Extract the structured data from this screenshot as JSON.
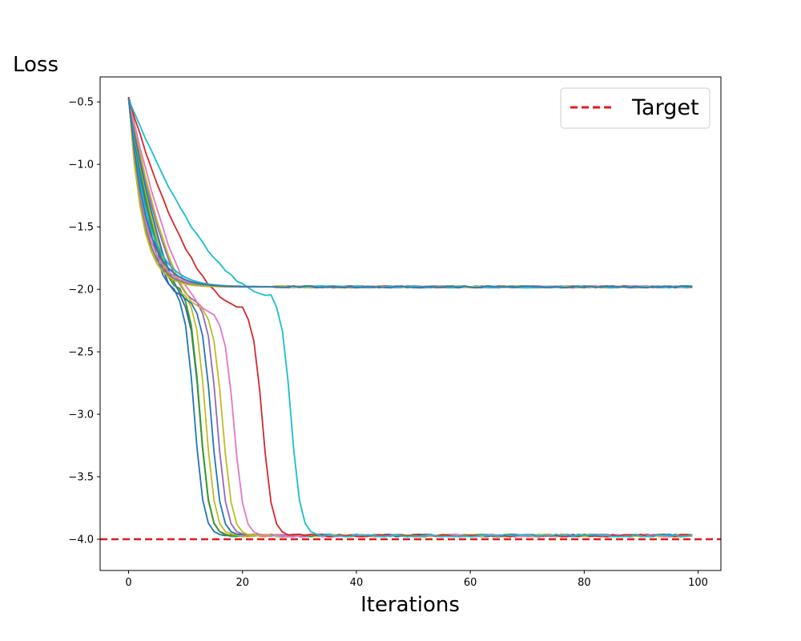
{
  "chart_data": {
    "type": "line",
    "xlabel": "Iterations",
    "ylabel": "Loss",
    "xlim": [
      -5,
      104
    ],
    "ylim": [
      -4.25,
      -0.3
    ],
    "xticks": [
      0,
      20,
      40,
      60,
      80,
      100
    ],
    "yticks": [
      -0.5,
      -1.0,
      -1.5,
      -2.0,
      -2.5,
      -3.0,
      -3.5,
      -4.0
    ],
    "ytick_labels": [
      "−0.5",
      "−1.0",
      "−1.5",
      "−2.0",
      "−2.5",
      "−3.0",
      "−3.5",
      "−4.0"
    ],
    "xtick_labels": [
      "0",
      "20",
      "40",
      "60",
      "80",
      "100"
    ],
    "iterations": 100,
    "start_loss": -0.47,
    "legend_position": "top-right",
    "grid": false,
    "target": {
      "label": "Target",
      "value": -4.0,
      "color": "#e41a1c",
      "style": "dashed"
    },
    "plateau_levels": [
      -1.98,
      -3.97
    ],
    "curves": [
      {
        "color": "#1f77b4",
        "plateau": -3.97,
        "drop_iteration": 10,
        "shoulder": -2.0
      },
      {
        "color": "#3b5fb0",
        "plateau": -3.97,
        "drop_iteration": 11,
        "shoulder": -2.05
      },
      {
        "color": "#ff7f0e",
        "plateau": -3.97,
        "drop_iteration": 11,
        "shoulder": -2.0
      },
      {
        "color": "#2ca02c",
        "plateau": -3.97,
        "drop_iteration": 11,
        "shoulder": -2.0
      },
      {
        "color": "#bcbd22",
        "plateau": -3.97,
        "drop_iteration": 12,
        "shoulder": -2.05
      },
      {
        "color": "#1f77b4",
        "plateau": -3.97,
        "drop_iteration": 13,
        "shoulder": -2.1
      },
      {
        "color": "#9467bd",
        "plateau": -3.97,
        "drop_iteration": 14,
        "shoulder": -2.1
      },
      {
        "color": "#bcbd22",
        "plateau": -3.97,
        "drop_iteration": 15,
        "shoulder": -2.15
      },
      {
        "color": "#e377c2",
        "plateau": -3.97,
        "drop_iteration": 17,
        "shoulder": -2.2
      },
      {
        "color": "#d62728",
        "plateau": -3.97,
        "drop_iteration": 22,
        "shoulder": -2.15
      },
      {
        "color": "#17becf",
        "plateau": -3.97,
        "drop_iteration": 27,
        "shoulder": -2.05
      },
      {
        "color": "#1f77b4",
        "plateau": -1.98,
        "drop_iteration": null,
        "shoulder": null
      },
      {
        "color": "#ff7f0e",
        "plateau": -1.98,
        "drop_iteration": null,
        "shoulder": null
      },
      {
        "color": "#2ca02c",
        "plateau": -1.98,
        "drop_iteration": null,
        "shoulder": null
      },
      {
        "color": "#d62728",
        "plateau": -1.98,
        "drop_iteration": null,
        "shoulder": null
      },
      {
        "color": "#9467bd",
        "plateau": -1.98,
        "drop_iteration": null,
        "shoulder": null
      },
      {
        "color": "#8c564b",
        "plateau": -1.98,
        "drop_iteration": null,
        "shoulder": null
      },
      {
        "color": "#e377c2",
        "plateau": -1.98,
        "drop_iteration": null,
        "shoulder": null
      },
      {
        "color": "#7f7f7f",
        "plateau": -1.98,
        "drop_iteration": null,
        "shoulder": null
      },
      {
        "color": "#bcbd22",
        "plateau": -1.98,
        "drop_iteration": null,
        "shoulder": null
      },
      {
        "color": "#17becf",
        "plateau": -1.98,
        "drop_iteration": null,
        "shoulder": null
      },
      {
        "color": "#3b75af",
        "plateau": -1.98,
        "drop_iteration": null,
        "shoulder": null
      }
    ]
  }
}
